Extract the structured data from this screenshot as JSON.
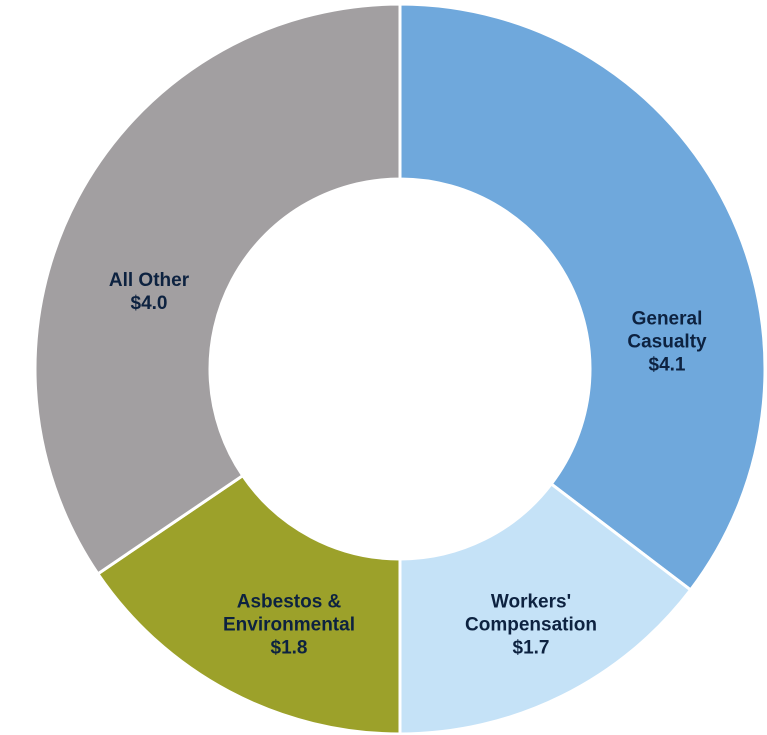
{
  "chart_data": {
    "type": "donut",
    "categories": [
      "General Casualty",
      "Workers' Compensation",
      "Asbestos & Environmental",
      "All Other"
    ],
    "values": [
      4.1,
      1.7,
      1.8,
      4.0
    ],
    "value_labels": [
      "$4.1",
      "$1.7",
      "$1.8",
      "$4.0"
    ],
    "colors": [
      "#6fa8dc",
      "#c5e2f7",
      "#9ca12a",
      "#a29fa1"
    ]
  }
}
